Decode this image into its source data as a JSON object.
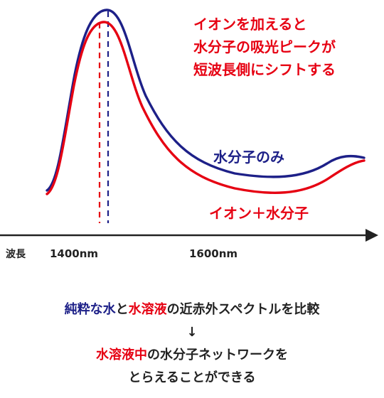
{
  "chart_data": {
    "type": "line",
    "xlabel": "波長",
    "x_ticks": [
      "1400nm",
      "1600nm"
    ],
    "series": [
      {
        "name": "水分子のみ",
        "color": "#1d2088",
        "peak_label": "1400nm"
      },
      {
        "name": "イオン+水分子",
        "color": "#e60012",
        "peak_label": "1400nm"
      }
    ],
    "annotation": [
      "イオンを加えると",
      "水分子の吸光ピークが",
      "短波長側にシフトする"
    ],
    "legend_labels": {
      "blue": "水分子のみ",
      "red": "イオン＋水分子"
    }
  },
  "colors": {
    "blue": "#1d2088",
    "red": "#e60012",
    "axis": "#222222"
  },
  "caption": {
    "line1": [
      {
        "text": "純粋な水",
        "color": "blue"
      },
      {
        "text": "と",
        "color": "dark"
      },
      {
        "text": "水溶液",
        "color": "red"
      },
      {
        "text": "の近赤外スペクトルを比較",
        "color": "dark"
      }
    ],
    "arrow": "↓",
    "line3": [
      {
        "text": "水溶液中",
        "color": "red"
      },
      {
        "text": "の水分子ネットワークを",
        "color": "dark"
      }
    ],
    "line4": "とらえることができる"
  }
}
